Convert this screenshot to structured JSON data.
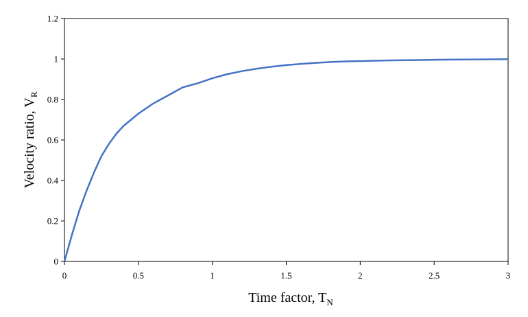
{
  "chart_data": {
    "type": "line",
    "xlabel": {
      "main": "Time factor, T",
      "sub": "N"
    },
    "ylabel": {
      "main": "Velocity ratio, V",
      "sub": "R"
    },
    "xlim": [
      0,
      3
    ],
    "ylim": [
      0,
      1.2
    ],
    "x_ticks": [
      "0",
      "0.5",
      "1",
      "1.5",
      "2",
      "2.5",
      "3"
    ],
    "y_ticks": [
      "0",
      "0.2",
      "0.4",
      "0.6",
      "0.8",
      "1",
      "1.2"
    ],
    "grid": false,
    "legend": "none",
    "series": [
      {
        "color": "#4472c4",
        "x": [
          0,
          0.05,
          0.1,
          0.15,
          0.2,
          0.25,
          0.3,
          0.35,
          0.4,
          0.45,
          0.5,
          0.6,
          0.7,
          0.8,
          0.9,
          1.0,
          1.1,
          1.2,
          1.3,
          1.4,
          1.5,
          1.6,
          1.7,
          1.8,
          1.9,
          2.0,
          2.2,
          2.4,
          2.6,
          2.8,
          3.0
        ],
        "y": [
          0,
          0.13,
          0.25,
          0.35,
          0.44,
          0.52,
          0.58,
          0.63,
          0.67,
          0.7,
          0.73,
          0.78,
          0.82,
          0.86,
          0.88,
          0.905,
          0.925,
          0.94,
          0.952,
          0.962,
          0.97,
          0.976,
          0.981,
          0.985,
          0.988,
          0.99,
          0.993,
          0.995,
          0.997,
          0.998,
          0.999
        ]
      }
    ]
  }
}
